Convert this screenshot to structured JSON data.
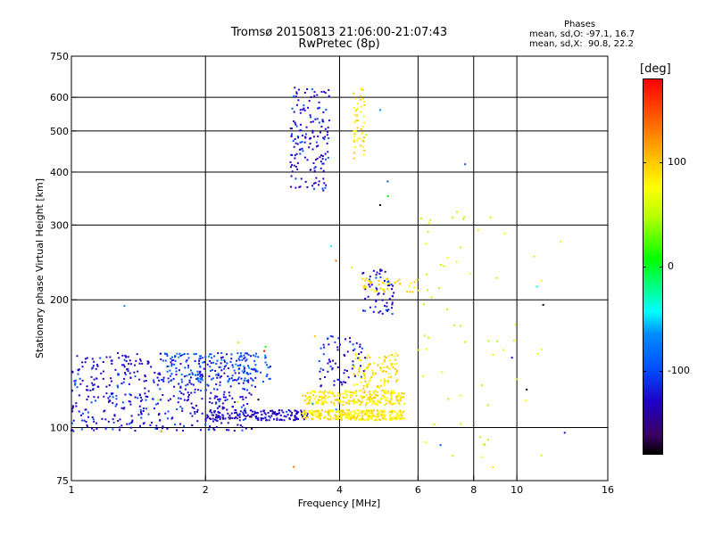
{
  "chart_data": {
    "type": "scatter",
    "title": "Tromsø 20150813 21:06:00-21:07:43",
    "subtitle": "RwPretec (8p)",
    "xlabel": "Frequency [MHz]",
    "ylabel": "Stationary phase Virtual Height [km]",
    "xscale": "log",
    "yscale": "log",
    "xlim": [
      1,
      16
    ],
    "ylim": [
      75,
      750
    ],
    "xticks": [
      1,
      2,
      4,
      6,
      8,
      10,
      16
    ],
    "yticks": [
      75,
      100,
      200,
      300,
      400,
      500,
      600,
      750
    ],
    "grid": true,
    "gridlines_x": [
      2,
      4,
      6,
      8,
      10
    ],
    "gridlines_y": [
      100,
      200,
      300,
      400,
      500,
      600
    ],
    "phases": {
      "header": "Phases",
      "o_mode": "mean, sd,O: -97.1, 16.7",
      "x_mode": "mean, sd,X:  90.8, 22.2"
    },
    "colorbar": {
      "unit": "[deg]",
      "range": [
        -180,
        180
      ],
      "ticks": [
        "100",
        "0",
        "-100"
      ],
      "tick_values": [
        100,
        0,
        -100
      ],
      "colormap": [
        "#000000",
        "#3c0064",
        "#1e00c8",
        "#0050ff",
        "#008cff",
        "#00ffff",
        "#00ff00",
        "#b4ff00",
        "#ffff00",
        "#ffc800",
        "#ff6a00",
        "#ff0000"
      ]
    },
    "series": [
      {
        "x_range": [
          1.0,
          2.6
        ],
        "y_range": [
          98,
          150
        ],
        "phase": -110,
        "count": 520
      },
      {
        "x_range": [
          2.0,
          3.4
        ],
        "y_range": [
          104,
          110
        ],
        "phase": -115,
        "count": 160
      },
      {
        "x_range": [
          1.6,
          2.8
        ],
        "y_range": [
          128,
          150
        ],
        "phase": -80,
        "count": 140
      },
      {
        "x_range": [
          3.3,
          5.6
        ],
        "y_range": [
          104,
          110
        ],
        "phase": 92,
        "count": 260
      },
      {
        "x_range": [
          3.3,
          5.6
        ],
        "y_range": [
          113,
          122
        ],
        "phase": 95,
        "count": 220
      },
      {
        "x_range": [
          4.3,
          5.4
        ],
        "y_range": [
          120,
          150
        ],
        "phase": 95,
        "count": 120
      },
      {
        "x_range": [
          3.6,
          4.6
        ],
        "y_range": [
          125,
          165
        ],
        "phase": -105,
        "count": 70
      },
      {
        "x_range": [
          4.5,
          5.3
        ],
        "y_range": [
          185,
          240
        ],
        "phase": -110,
        "count": 60
      },
      {
        "x_range": [
          4.5,
          6.0
        ],
        "y_range": [
          208,
          225
        ],
        "phase": 100,
        "count": 45
      },
      {
        "x_range": [
          3.1,
          3.8
        ],
        "y_range": [
          360,
          640
        ],
        "phase": -110,
        "count": 160
      },
      {
        "x_range": [
          4.3,
          4.55
        ],
        "y_range": [
          430,
          630
        ],
        "phase": 95,
        "count": 50
      },
      {
        "x_range": [
          6.0,
          11.5
        ],
        "y_range": [
          80,
          330
        ],
        "phase": 60,
        "count": 60
      },
      {
        "x_range": [
          1.3,
          13.0
        ],
        "y_range": [
          78,
          620
        ],
        "phase": 0,
        "count": 30
      }
    ]
  }
}
